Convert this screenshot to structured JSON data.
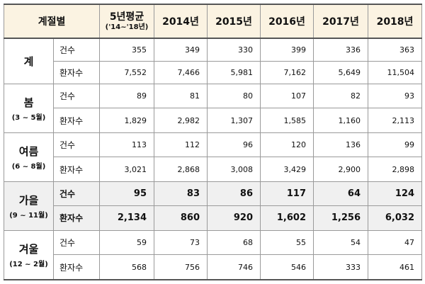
{
  "headers": {
    "season": "계절별",
    "avg_main": "5년평균",
    "avg_sub": "('14~'18년)",
    "y2014": "2014년",
    "y2015": "2015년",
    "y2016": "2016년",
    "y2017": "2017년",
    "y2018": "2018년"
  },
  "groups": [
    {
      "name": "계",
      "range": "",
      "rows": [
        {
          "metric": "건수",
          "values": [
            "355",
            "349",
            "330",
            "399",
            "336",
            "363"
          ]
        },
        {
          "metric": "환자수",
          "values": [
            "7,552",
            "7,466",
            "5,981",
            "7,162",
            "5,649",
            "11,504"
          ]
        }
      ]
    },
    {
      "name": "봄",
      "range": "(3 ~ 5월)",
      "rows": [
        {
          "metric": "건수",
          "values": [
            "89",
            "81",
            "80",
            "107",
            "82",
            "93"
          ]
        },
        {
          "metric": "환자수",
          "values": [
            "1,829",
            "2,982",
            "1,307",
            "1,585",
            "1,160",
            "2,113"
          ]
        }
      ]
    },
    {
      "name": "여름",
      "range": "(6 ~ 8월)",
      "rows": [
        {
          "metric": "건수",
          "values": [
            "113",
            "112",
            "96",
            "120",
            "136",
            "99"
          ]
        },
        {
          "metric": "환자수",
          "values": [
            "3,021",
            "2,868",
            "3,008",
            "3,429",
            "2,900",
            "2,898"
          ]
        }
      ]
    },
    {
      "name": "가을",
      "range": "(9 ~ 11월)",
      "rows": [
        {
          "metric": "건수",
          "values": [
            "95",
            "83",
            "86",
            "117",
            "64",
            "124"
          ]
        },
        {
          "metric": "환자수",
          "values": [
            "2,134",
            "860",
            "920",
            "1,602",
            "1,256",
            "6,032"
          ]
        }
      ]
    },
    {
      "name": "겨울",
      "range": "(12 ~ 2월)",
      "rows": [
        {
          "metric": "건수",
          "values": [
            "59",
            "73",
            "68",
            "55",
            "54",
            "47"
          ]
        },
        {
          "metric": "환자수",
          "values": [
            "568",
            "756",
            "746",
            "546",
            "333",
            "461"
          ]
        }
      ]
    }
  ]
}
